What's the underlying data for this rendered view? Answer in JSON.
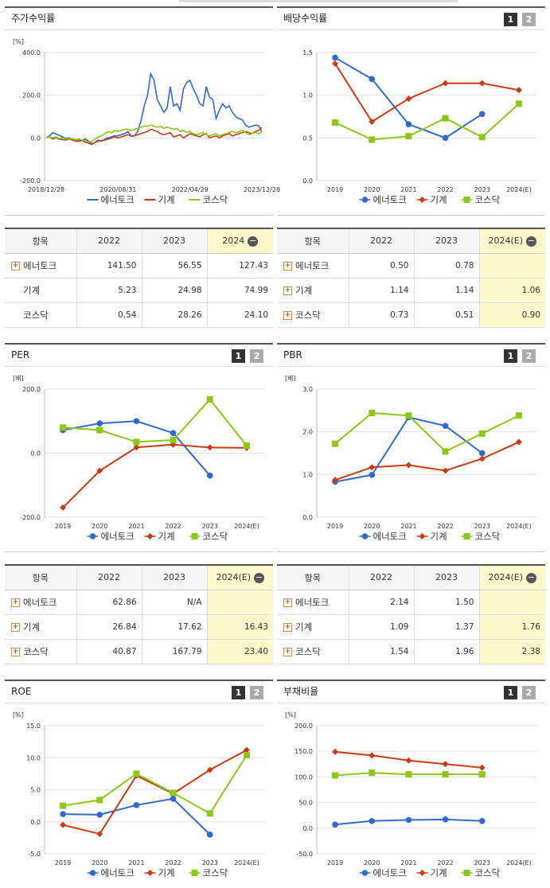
{
  "panels": {
    "stock": {
      "title": "주가수익률"
    },
    "div": {
      "title": "배당수익률",
      "btn1": "1",
      "btn2": "2"
    },
    "per": {
      "title": "PER",
      "btn1": "1",
      "btn2": "2"
    },
    "pbr": {
      "title": "PBR",
      "btn1": "1",
      "btn2": "2"
    },
    "roe": {
      "title": "ROE",
      "btn1": "1",
      "btn2": "2"
    },
    "debt": {
      "title": "부채비율",
      "btn1": "1",
      "btn2": "2"
    }
  },
  "legend": [
    "에너토크",
    "기계",
    "코스닥"
  ],
  "colors": {
    "series1": "#2f6ad0",
    "series2": "#cc3a12",
    "series3": "#8cc818"
  },
  "tables": {
    "stock": {
      "headers": [
        "항목",
        "2022",
        "2023",
        "2024"
      ],
      "rows": [
        {
          "name": "에너토크",
          "expand": true,
          "v": [
            "141.50",
            "56.55",
            "127.43"
          ]
        },
        {
          "name": "기계",
          "expand": false,
          "v": [
            "5.23",
            "24.98",
            "74.99"
          ]
        },
        {
          "name": "코스닥",
          "expand": false,
          "v": [
            "0.54",
            "28.26",
            "24.10"
          ]
        }
      ]
    },
    "div": {
      "headers": [
        "항목",
        "2022",
        "2023",
        "2024(E)"
      ],
      "rows": [
        {
          "name": "에너토크",
          "expand": true,
          "v": [
            "0.50",
            "0.78",
            ""
          ]
        },
        {
          "name": "기계",
          "expand": true,
          "v": [
            "1.14",
            "1.14",
            "1.06"
          ]
        },
        {
          "name": "코스닥",
          "expand": true,
          "v": [
            "0.73",
            "0.51",
            "0.90"
          ]
        }
      ]
    },
    "per": {
      "headers": [
        "항목",
        "2022",
        "2023",
        "2024(E)"
      ],
      "rows": [
        {
          "name": "에너토크",
          "expand": true,
          "v": [
            "62.86",
            "N/A",
            ""
          ]
        },
        {
          "name": "기계",
          "expand": true,
          "v": [
            "26.84",
            "17.62",
            "16.43"
          ]
        },
        {
          "name": "코스닥",
          "expand": true,
          "v": [
            "40.87",
            "167.79",
            "23.40"
          ]
        }
      ]
    },
    "pbr": {
      "headers": [
        "항목",
        "2022",
        "2023",
        "2024(E)"
      ],
      "rows": [
        {
          "name": "에너토크",
          "expand": true,
          "v": [
            "2.14",
            "1.50",
            ""
          ]
        },
        {
          "name": "기계",
          "expand": true,
          "v": [
            "1.09",
            "1.37",
            "1.76"
          ]
        },
        {
          "name": "코스닥",
          "expand": true,
          "v": [
            "1.54",
            "1.96",
            "2.38"
          ]
        }
      ]
    }
  },
  "chart_data": [
    {
      "id": "stock",
      "type": "line",
      "unit": "[%]",
      "ylim": [
        -200,
        400
      ],
      "yticks": [
        "400.0",
        "200.0",
        "0.0",
        "-200.0"
      ],
      "xticks": [
        "2018/12/28",
        "2020/08/31",
        "2022/04/29",
        "2023/12/28"
      ],
      "series": [
        {
          "name": "에너토크",
          "values": [
            0,
            10,
            25,
            18,
            12,
            5,
            -2,
            0,
            -5,
            -10,
            -8,
            -12,
            -5,
            -15,
            -28,
            -20,
            -10,
            -15,
            -5,
            0,
            5,
            10,
            10,
            15,
            20,
            30,
            10,
            10,
            30,
            80,
            150,
            200,
            300,
            270,
            180,
            150,
            120,
            140,
            240,
            150,
            160,
            130,
            230,
            260,
            270,
            230,
            200,
            160,
            150,
            240,
            190,
            180,
            90,
            130,
            160,
            140,
            150,
            120,
            100,
            90,
            85,
            60,
            50,
            55,
            60,
            58,
            30
          ]
        },
        {
          "name": "기계",
          "values": [
            0,
            5,
            -5,
            2,
            -5,
            -8,
            -10,
            -5,
            -10,
            -15,
            -15,
            -12,
            -20,
            -25,
            -30,
            -20,
            -15,
            -12,
            -10,
            -5,
            0,
            5,
            0,
            5,
            10,
            15,
            8,
            10,
            15,
            20,
            25,
            30,
            40,
            35,
            30,
            20,
            15,
            20,
            25,
            5,
            10,
            15,
            0,
            10,
            20,
            15,
            10,
            5,
            15,
            20,
            0,
            5,
            10,
            0,
            10,
            15,
            20,
            10,
            15,
            20,
            25,
            30,
            25,
            20,
            30,
            35,
            50
          ]
        },
        {
          "name": "코스닥",
          "values": [
            0,
            5,
            0,
            5,
            -2,
            0,
            -5,
            -2,
            -5,
            -8,
            -5,
            -10,
            -12,
            -20,
            -15,
            -5,
            5,
            10,
            20,
            30,
            25,
            35,
            30,
            35,
            40,
            40,
            35,
            40,
            45,
            50,
            55,
            55,
            60,
            55,
            50,
            55,
            45,
            50,
            45,
            40,
            45,
            30,
            35,
            25,
            30,
            20,
            15,
            20,
            25,
            15,
            10,
            15,
            20,
            10,
            15,
            20,
            25,
            30,
            25,
            30,
            35,
            25,
            15,
            20,
            25,
            20,
            30
          ]
        }
      ]
    },
    {
      "id": "div",
      "type": "line",
      "unit": "",
      "categories": [
        "2019",
        "2020",
        "2021",
        "2022",
        "2023",
        "2024(E)"
      ],
      "ylim": [
        0,
        1.5
      ],
      "yticks": [
        "1.5",
        "1.0",
        "0.5",
        "0.0"
      ],
      "series": [
        {
          "name": "에너토크",
          "values": [
            1.44,
            1.19,
            0.66,
            0.5,
            0.78,
            null
          ]
        },
        {
          "name": "기계",
          "values": [
            1.37,
            0.69,
            0.96,
            1.14,
            1.14,
            1.06
          ]
        },
        {
          "name": "코스닥",
          "values": [
            0.68,
            0.48,
            0.52,
            0.73,
            0.51,
            0.9
          ]
        }
      ]
    },
    {
      "id": "per",
      "type": "line",
      "unit": "[배]",
      "categories": [
        "2019",
        "2020",
        "2021",
        "2022",
        "2023",
        "2024(E)"
      ],
      "ylim": [
        -200,
        200
      ],
      "yticks": [
        "200.0",
        "0.0",
        "-200.0"
      ],
      "series": [
        {
          "name": "에너토크",
          "values": [
            72,
            93,
            100,
            62.86,
            -70,
            null
          ]
        },
        {
          "name": "기계",
          "values": [
            -170,
            -55,
            18,
            26.84,
            17.62,
            16.43
          ]
        },
        {
          "name": "코스닥",
          "values": [
            80,
            72,
            35,
            40.87,
            167.79,
            23.4
          ]
        }
      ]
    },
    {
      "id": "pbr",
      "type": "line",
      "unit": "[배]",
      "categories": [
        "2019",
        "2020",
        "2021",
        "2022",
        "2023",
        "2024(E)"
      ],
      "ylim": [
        0,
        3
      ],
      "yticks": [
        "3.0",
        "2.0",
        "1.0",
        "0.0"
      ],
      "series": [
        {
          "name": "에너토크",
          "values": [
            0.83,
            0.99,
            2.34,
            2.14,
            1.5,
            null
          ]
        },
        {
          "name": "기계",
          "values": [
            0.87,
            1.17,
            1.22,
            1.09,
            1.37,
            1.76
          ]
        },
        {
          "name": "코스닥",
          "values": [
            1.72,
            2.44,
            2.38,
            1.54,
            1.96,
            2.38
          ]
        }
      ]
    },
    {
      "id": "roe",
      "type": "line",
      "unit": "[%]",
      "categories": [
        "2019",
        "2020",
        "2021",
        "2022",
        "2023",
        "2024(E)"
      ],
      "ylim": [
        -5,
        15
      ],
      "yticks": [
        "15.0",
        "10.0",
        "5.0",
        "0.0",
        "-5.0"
      ],
      "series": [
        {
          "name": "에너토크",
          "values": [
            1.2,
            1.1,
            2.6,
            3.6,
            -2.0,
            null
          ]
        },
        {
          "name": "기계",
          "values": [
            -0.5,
            -1.9,
            7.2,
            4.4,
            8.1,
            11.2
          ]
        },
        {
          "name": "코스닥",
          "values": [
            2.5,
            3.4,
            7.5,
            4.5,
            1.3,
            10.4
          ]
        }
      ]
    },
    {
      "id": "debt",
      "type": "line",
      "unit": "[%]",
      "categories": [
        "2019",
        "2020",
        "2021",
        "2022",
        "2023",
        "2024(E)"
      ],
      "ylim": [
        -50,
        200
      ],
      "yticks": [
        "200.0",
        "150.0",
        "100.0",
        "50.0",
        "0.0",
        "-50.0"
      ],
      "series": [
        {
          "name": "에너토크",
          "values": [
            7,
            14,
            16,
            17,
            14,
            null
          ]
        },
        {
          "name": "기계",
          "values": [
            149,
            142,
            132,
            125,
            118,
            null
          ]
        },
        {
          "name": "코스닥",
          "values": [
            103,
            108,
            105,
            105,
            105,
            null
          ]
        }
      ]
    }
  ]
}
